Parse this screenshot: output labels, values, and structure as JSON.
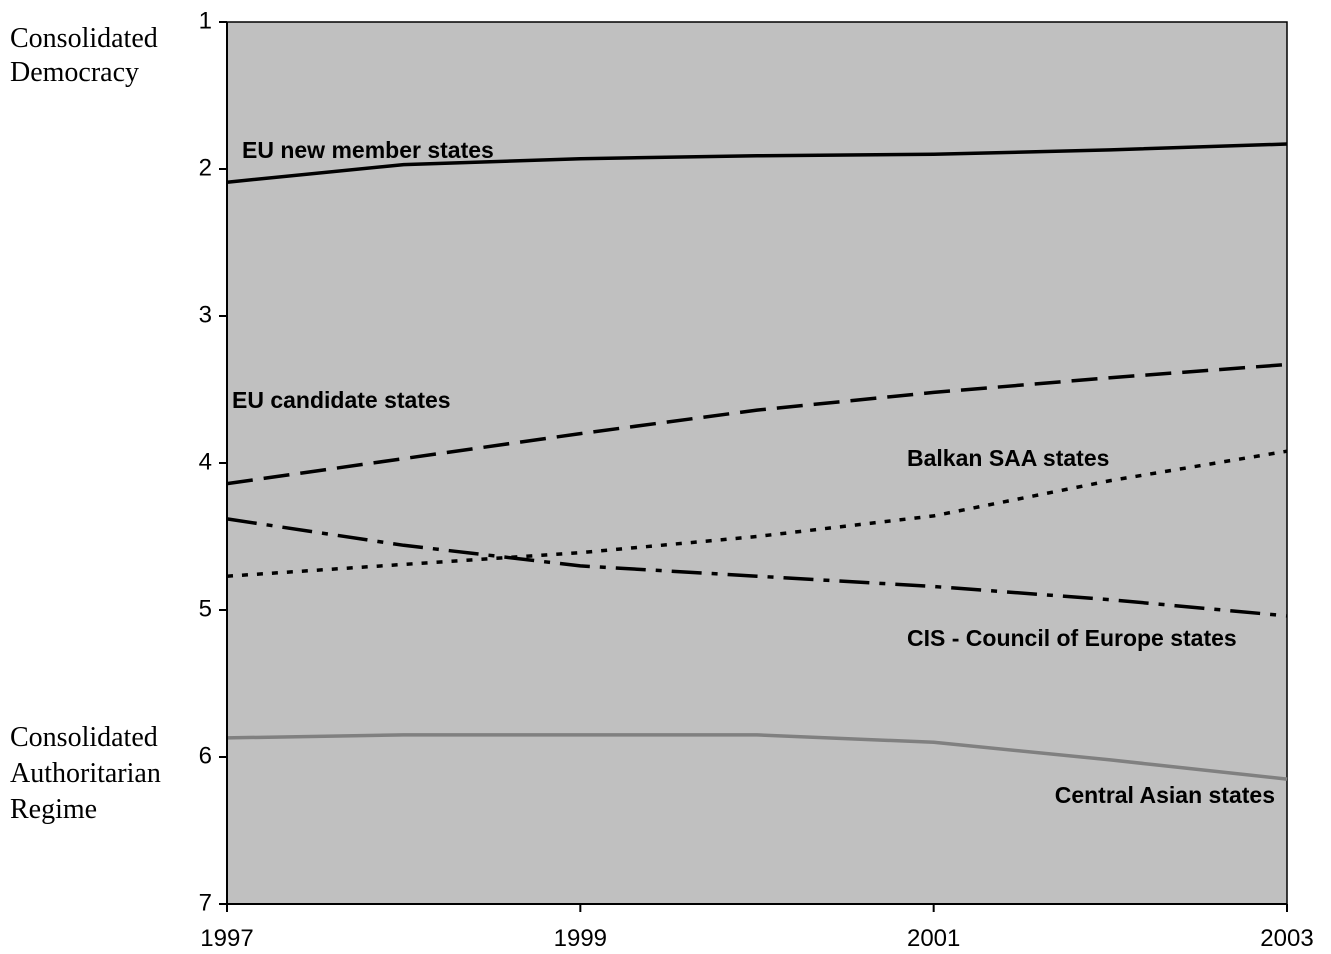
{
  "chart_data": {
    "type": "line",
    "x": [
      "1997",
      "1998",
      "1999",
      "2000",
      "2001",
      "2002",
      "2003"
    ],
    "x_ticks": [
      "1997",
      "1999",
      "2001",
      "2003"
    ],
    "ylim": [
      1,
      7
    ],
    "y_inverted": true,
    "y_ticks": [
      "1",
      "2",
      "3",
      "4",
      "5",
      "6",
      "7"
    ],
    "y_top_label": [
      "Consolidated",
      "Democracy"
    ],
    "y_bottom_label": [
      "Consolidated",
      "Authoritarian",
      "Regime"
    ],
    "grid": false,
    "legend": "none (direct labels)",
    "plot_background": "#c0c0c0",
    "series": [
      {
        "name": "EU new member states",
        "values": [
          2.09,
          1.97,
          1.93,
          1.91,
          1.9,
          1.87,
          1.83
        ],
        "color": "#000000",
        "dash": "solid"
      },
      {
        "name": "EU candidate states",
        "values": [
          4.14,
          3.97,
          3.8,
          3.64,
          3.52,
          3.42,
          3.33
        ],
        "color": "#000000",
        "dash": "dashed"
      },
      {
        "name": "Balkan SAA states",
        "values": [
          4.77,
          4.69,
          4.61,
          4.5,
          4.36,
          4.12,
          3.92
        ],
        "color": "#000000",
        "dash": "dotted"
      },
      {
        "name": "CIS - Council of Europe states",
        "values": [
          4.38,
          4.56,
          4.7,
          4.77,
          4.84,
          4.93,
          5.04
        ],
        "color": "#000000",
        "dash": "dash-dot"
      },
      {
        "name": "Central Asian states",
        "values": [
          5.87,
          5.85,
          5.85,
          5.85,
          5.9,
          6.02,
          6.15
        ],
        "color": "#808080",
        "dash": "solid"
      }
    ]
  }
}
